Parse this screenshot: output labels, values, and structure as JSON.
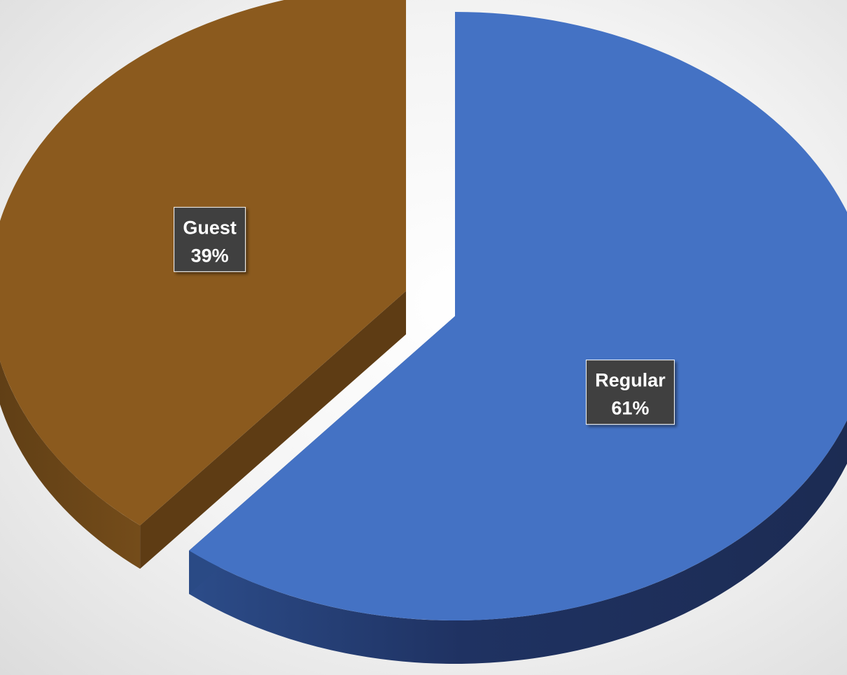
{
  "chart_data": {
    "type": "pie",
    "title": "",
    "categories": [
      "Regular",
      "Guest"
    ],
    "values": [
      61,
      39
    ],
    "unit": "%",
    "data_labels": [
      {
        "category": "Regular",
        "value": "61%"
      },
      {
        "category": "Guest",
        "value": "39%"
      }
    ],
    "colors": {
      "Regular": {
        "top": "#4472C4",
        "side": "#1E2E55",
        "side_light": "#2A4A85"
      },
      "Guest": {
        "top": "#8B5A1E",
        "side": "#6B4518",
        "side_light": "#5E3C14"
      }
    },
    "legend": "none",
    "style": "3d-exploded"
  }
}
